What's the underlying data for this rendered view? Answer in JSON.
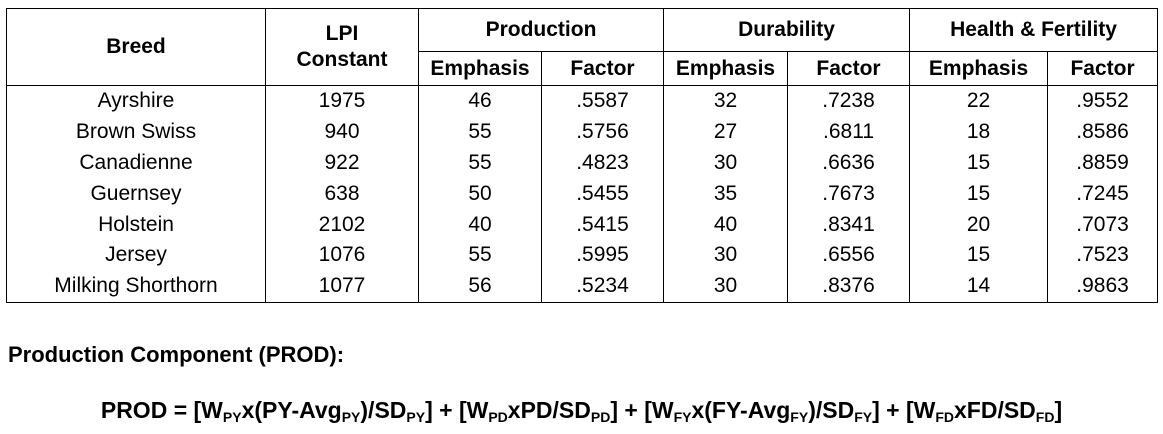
{
  "table": {
    "header": {
      "breed": "Breed",
      "lpi": "LPI Constant",
      "groups": [
        "Production",
        "Durability",
        "Health & Fertility"
      ],
      "subheaders": [
        "Emphasis",
        "Factor",
        "Emphasis",
        "Factor",
        "Emphasis",
        "Factor"
      ]
    },
    "rows": [
      [
        "Ayrshire",
        "1975",
        "46",
        ".5587",
        "32",
        ".7238",
        "22",
        ".9552"
      ],
      [
        "Brown Swiss",
        "940",
        "55",
        ".5756",
        "27",
        ".6811",
        "18",
        ".8586"
      ],
      [
        "Canadienne",
        "922",
        "55",
        ".4823",
        "30",
        ".6636",
        "15",
        ".8859"
      ],
      [
        "Guernsey",
        "638",
        "50",
        ".5455",
        "35",
        ".7673",
        "15",
        ".7245"
      ],
      [
        "Holstein",
        "2102",
        "40",
        ".5415",
        "40",
        ".8341",
        "20",
        ".7073"
      ],
      [
        "Jersey",
        "1076",
        "55",
        ".5995",
        "30",
        ".6556",
        "15",
        ".7523"
      ],
      [
        "Milking Shorthorn",
        "1077",
        "56",
        ".5234",
        "30",
        ".8376",
        "14",
        ".9863"
      ]
    ]
  },
  "section_heading": "Production Component (PROD):",
  "formula": [
    {
      "text": "PROD = [W"
    },
    {
      "sub": "PY"
    },
    {
      "text": "x(PY-Avg"
    },
    {
      "sub": "PY"
    },
    {
      "text": ")/SD"
    },
    {
      "sub": "PY"
    },
    {
      "text": "] + [W"
    },
    {
      "sub": "PD"
    },
    {
      "text": "xPD/SD"
    },
    {
      "sub": "PD"
    },
    {
      "text": "] + [W"
    },
    {
      "sub": "FY"
    },
    {
      "text": "x(FY-Avg"
    },
    {
      "sub": "FY"
    },
    {
      "text": ")/SD"
    },
    {
      "sub": "FY"
    },
    {
      "text": "] + [W"
    },
    {
      "sub": "FD"
    },
    {
      "text": "xFD/SD"
    },
    {
      "sub": "FD"
    },
    {
      "text": "]"
    }
  ]
}
